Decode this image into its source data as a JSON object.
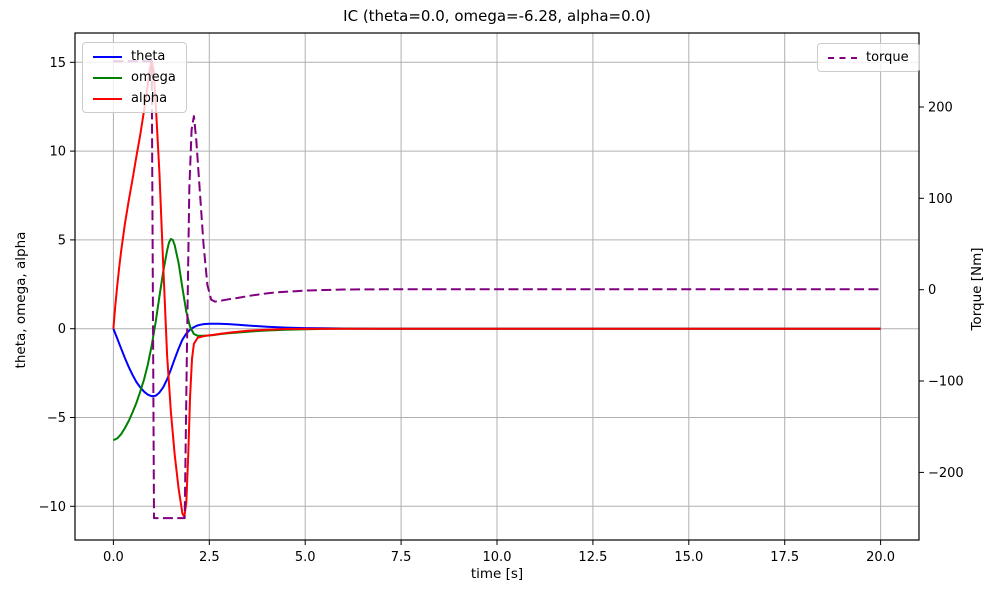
{
  "chart_data": {
    "type": "line",
    "title": "IC (theta=0.0, omega=-6.28, alpha=0.0)",
    "xlabel": "time [s]",
    "ylabel_left": "theta, omega, alpha",
    "ylabel_right": "Torque [Nm]",
    "xlim": [
      -1,
      21
    ],
    "ylim_left": [
      -11.9,
      16.65
    ],
    "ylim_right": [
      -274,
      281
    ],
    "grid": true,
    "grid_color": "#b0b0b0",
    "background_color": "#ffffff",
    "legend_positions": {
      "left": "upper left",
      "right": "upper right"
    },
    "x_ticks": {
      "values": [
        0,
        2.5,
        5,
        7.5,
        10,
        12.5,
        15,
        17.5,
        20
      ],
      "labels": [
        "0.0",
        "2.5",
        "5.0",
        "7.5",
        "10.0",
        "12.5",
        "15.0",
        "17.5",
        "20.0"
      ]
    },
    "y_ticks_left": {
      "values": [
        -10,
        -5,
        0,
        5,
        10,
        15
      ],
      "labels": [
        "−10",
        "−5",
        "0",
        "5",
        "10",
        "15"
      ]
    },
    "y_ticks_right": {
      "values": [
        -200,
        -100,
        0,
        100,
        200
      ],
      "labels": [
        "−200",
        "−100",
        "0",
        "100",
        "200"
      ]
    },
    "series": [
      {
        "name": "theta",
        "color": "#0000ff",
        "style": "solid",
        "dash": "",
        "width": 2,
        "axis": "left",
        "legend": "left",
        "points": [
          [
            0,
            0
          ],
          [
            0.1,
            -0.55
          ],
          [
            0.2,
            -1.1
          ],
          [
            0.3,
            -1.65
          ],
          [
            0.4,
            -2.15
          ],
          [
            0.5,
            -2.6
          ],
          [
            0.6,
            -3.0
          ],
          [
            0.7,
            -3.3
          ],
          [
            0.8,
            -3.55
          ],
          [
            0.9,
            -3.72
          ],
          [
            1.0,
            -3.8
          ],
          [
            1.1,
            -3.78
          ],
          [
            1.2,
            -3.6
          ],
          [
            1.3,
            -3.3
          ],
          [
            1.4,
            -2.85
          ],
          [
            1.5,
            -2.3
          ],
          [
            1.6,
            -1.7
          ],
          [
            1.7,
            -1.12
          ],
          [
            1.8,
            -0.62
          ],
          [
            1.9,
            -0.28
          ],
          [
            2.0,
            -0.06
          ],
          [
            2.1,
            0.09
          ],
          [
            2.2,
            0.19
          ],
          [
            2.35,
            0.26
          ],
          [
            2.5,
            0.28
          ],
          [
            2.75,
            0.28
          ],
          [
            3.0,
            0.26
          ],
          [
            3.25,
            0.22
          ],
          [
            3.5,
            0.18
          ],
          [
            4.0,
            0.11
          ],
          [
            4.5,
            0.06
          ],
          [
            5.0,
            0.03
          ],
          [
            5.5,
            0.02
          ],
          [
            6.0,
            0.01
          ],
          [
            7.0,
            0
          ],
          [
            10,
            0
          ],
          [
            15,
            0
          ],
          [
            20,
            0
          ]
        ]
      },
      {
        "name": "omega",
        "color": "#008000",
        "style": "solid",
        "dash": "",
        "width": 2,
        "axis": "left",
        "legend": "left",
        "points": [
          [
            0,
            -6.28
          ],
          [
            0.1,
            -6.18
          ],
          [
            0.2,
            -5.95
          ],
          [
            0.3,
            -5.6
          ],
          [
            0.4,
            -5.2
          ],
          [
            0.5,
            -4.72
          ],
          [
            0.6,
            -4.18
          ],
          [
            0.7,
            -3.55
          ],
          [
            0.8,
            -2.85
          ],
          [
            0.9,
            -2.0
          ],
          [
            1.0,
            -0.95
          ],
          [
            1.1,
            0.35
          ],
          [
            1.2,
            1.8
          ],
          [
            1.3,
            3.2
          ],
          [
            1.4,
            4.4
          ],
          [
            1.45,
            4.85
          ],
          [
            1.5,
            5.05
          ],
          [
            1.55,
            5.0
          ],
          [
            1.6,
            4.7
          ],
          [
            1.7,
            3.7
          ],
          [
            1.8,
            2.3
          ],
          [
            1.9,
            0.95
          ],
          [
            2.0,
            0.1
          ],
          [
            2.1,
            -0.3
          ],
          [
            2.2,
            -0.4
          ],
          [
            2.4,
            -0.4
          ],
          [
            2.6,
            -0.36
          ],
          [
            2.8,
            -0.3
          ],
          [
            3.0,
            -0.26
          ],
          [
            3.5,
            -0.17
          ],
          [
            4.0,
            -0.1
          ],
          [
            4.5,
            -0.06
          ],
          [
            5.0,
            -0.03
          ],
          [
            5.5,
            -0.015
          ],
          [
            6.0,
            0
          ],
          [
            10,
            0
          ],
          [
            15,
            0
          ],
          [
            20,
            0
          ]
        ]
      },
      {
        "name": "alpha",
        "color": "#ff0000",
        "style": "solid",
        "dash": "",
        "width": 2,
        "axis": "left",
        "legend": "left",
        "points": [
          [
            0,
            0
          ],
          [
            0.05,
            1.3
          ],
          [
            0.1,
            2.4
          ],
          [
            0.15,
            3.4
          ],
          [
            0.2,
            4.3
          ],
          [
            0.3,
            5.9
          ],
          [
            0.4,
            7.2
          ],
          [
            0.5,
            8.4
          ],
          [
            0.6,
            9.7
          ],
          [
            0.7,
            10.9
          ],
          [
            0.8,
            12.3
          ],
          [
            0.9,
            13.8
          ],
          [
            0.95,
            14.6
          ],
          [
            1.0,
            15.1
          ],
          [
            1.05,
            14.5
          ],
          [
            1.1,
            12.8
          ],
          [
            1.2,
            8.8
          ],
          [
            1.3,
            3.6
          ],
          [
            1.4,
            -1.5
          ],
          [
            1.5,
            -4.7
          ],
          [
            1.6,
            -7.1
          ],
          [
            1.7,
            -9.0
          ],
          [
            1.8,
            -10.4
          ],
          [
            1.85,
            -10.6
          ],
          [
            1.9,
            -9.8
          ],
          [
            1.95,
            -7.2
          ],
          [
            2.0,
            -3.8
          ],
          [
            2.05,
            -1.7
          ],
          [
            2.1,
            -0.85
          ],
          [
            2.2,
            -0.5
          ],
          [
            2.4,
            -0.4
          ],
          [
            2.6,
            -0.35
          ],
          [
            2.8,
            -0.29
          ],
          [
            3.0,
            -0.23
          ],
          [
            3.5,
            -0.12
          ],
          [
            4.0,
            -0.06
          ],
          [
            4.5,
            -0.02
          ],
          [
            5.0,
            -0.01
          ],
          [
            6.0,
            0
          ],
          [
            10,
            0
          ],
          [
            15,
            0
          ],
          [
            20,
            0
          ]
        ]
      },
      {
        "name": "torque",
        "color": "#800080",
        "style": "dashed",
        "dash": "10 4.4",
        "width": 2,
        "axis": "right",
        "legend": "right",
        "points": [
          [
            0,
            250
          ],
          [
            1.0,
            250
          ],
          [
            1.06,
            -250
          ],
          [
            1.86,
            -250
          ],
          [
            1.92,
            -60
          ],
          [
            1.98,
            110
          ],
          [
            2.04,
            175
          ],
          [
            2.1,
            190
          ],
          [
            2.16,
            165
          ],
          [
            2.25,
            110
          ],
          [
            2.35,
            50
          ],
          [
            2.45,
            5
          ],
          [
            2.55,
            -11
          ],
          [
            2.65,
            -13
          ],
          [
            2.8,
            -12
          ],
          [
            3.0,
            -10.5
          ],
          [
            3.25,
            -9
          ],
          [
            3.5,
            -7
          ],
          [
            3.75,
            -5.5
          ],
          [
            4.0,
            -4
          ],
          [
            4.25,
            -3
          ],
          [
            4.5,
            -2.2
          ],
          [
            4.75,
            -1.6
          ],
          [
            5.0,
            -1
          ],
          [
            5.5,
            -0.3
          ],
          [
            6.0,
            0.2
          ],
          [
            7.0,
            0.4
          ],
          [
            8.0,
            0.5
          ],
          [
            10.0,
            0.5
          ],
          [
            12.5,
            0.5
          ],
          [
            15.0,
            0.5
          ],
          [
            17.5,
            0.5
          ],
          [
            20.0,
            0.5
          ]
        ]
      }
    ]
  }
}
